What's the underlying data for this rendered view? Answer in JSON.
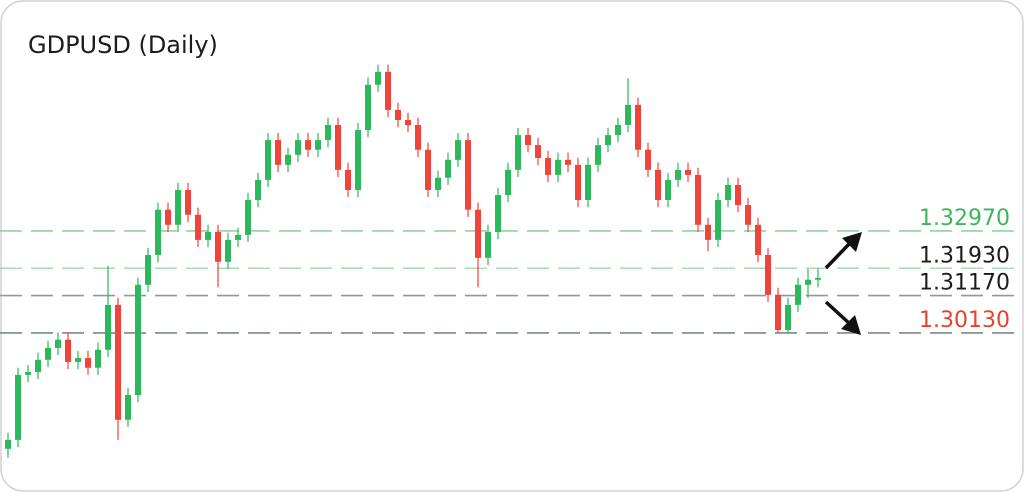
{
  "chart_data": {
    "type": "candlestick",
    "title": "GDPUSD (Daily)",
    "ylim": [
      1.2659,
      1.3773
    ],
    "up_color": "#2eb85c",
    "down_color": "#f0443a",
    "open": [
      1.269,
      1.2715,
      1.2896,
      1.2904,
      1.2938,
      1.2971,
      1.2994,
      1.2932,
      1.2943,
      1.2916,
      1.2966,
      1.3091,
      1.2771,
      1.284,
      1.3147,
      1.323,
      1.3356,
      1.3314,
      1.3411,
      1.3342,
      1.3272,
      1.3294,
      1.3211,
      1.3272,
      1.3286,
      1.3383,
      1.3439,
      1.355,
      1.3481,
      1.3509,
      1.355,
      1.3523,
      1.355,
      1.3592,
      1.3467,
      1.3411,
      1.3578,
      1.3704,
      1.374,
      1.3634,
      1.3606,
      1.3592,
      1.3523,
      1.3411,
      1.3445,
      1.3495,
      1.355,
      1.3356,
      1.3222,
      1.3294,
      1.3397,
      1.3467,
      1.3564,
      1.3536,
      1.35,
      1.3453,
      1.3495,
      1.3481,
      1.3383,
      1.3481,
      1.3536,
      1.3564,
      1.3592,
      1.3648,
      1.3523,
      1.3467,
      1.3383,
      1.3439,
      1.3467,
      1.3453,
      1.3314,
      1.3272,
      1.3383,
      1.3425,
      1.3369,
      1.3314,
      1.323,
      1.3119,
      1.3021,
      1.3091,
      1.3147,
      1.3161
    ],
    "high": [
      1.2735,
      1.2916,
      1.2924,
      1.2958,
      1.2991,
      1.3014,
      1.3014,
      1.2963,
      1.2963,
      1.2986,
      1.32,
      1.3111,
      1.286,
      1.3167,
      1.325,
      1.3376,
      1.3376,
      1.3431,
      1.3431,
      1.3362,
      1.3314,
      1.3314,
      1.3292,
      1.3306,
      1.3403,
      1.3459,
      1.357,
      1.357,
      1.3529,
      1.357,
      1.357,
      1.357,
      1.3612,
      1.3612,
      1.3487,
      1.3598,
      1.3724,
      1.376,
      1.376,
      1.3654,
      1.3626,
      1.3612,
      1.3543,
      1.3465,
      1.3515,
      1.357,
      1.357,
      1.3376,
      1.3314,
      1.3417,
      1.3487,
      1.3584,
      1.3584,
      1.3556,
      1.352,
      1.3515,
      1.3515,
      1.3501,
      1.3501,
      1.3556,
      1.3584,
      1.3612,
      1.3722,
      1.3668,
      1.3543,
      1.3487,
      1.3459,
      1.3487,
      1.3487,
      1.3473,
      1.3334,
      1.3403,
      1.3445,
      1.3445,
      1.3389,
      1.3334,
      1.325,
      1.3139,
      1.3111,
      1.3167,
      1.3191,
      1.3193
    ],
    "low": [
      1.2665,
      1.2695,
      1.2876,
      1.2884,
      1.2918,
      1.2951,
      1.2912,
      1.2912,
      1.2896,
      1.2896,
      1.2946,
      1.2715,
      1.2751,
      1.282,
      1.3127,
      1.321,
      1.3294,
      1.3294,
      1.3322,
      1.3252,
      1.3252,
      1.314,
      1.3191,
      1.3252,
      1.3266,
      1.3363,
      1.3419,
      1.3461,
      1.3461,
      1.3489,
      1.3503,
      1.3503,
      1.353,
      1.3447,
      1.3391,
      1.3391,
      1.3558,
      1.3684,
      1.3614,
      1.3586,
      1.3572,
      1.3503,
      1.3391,
      1.3391,
      1.3425,
      1.3475,
      1.3336,
      1.314,
      1.3202,
      1.3274,
      1.3377,
      1.3447,
      1.3516,
      1.348,
      1.3433,
      1.3433,
      1.3461,
      1.3363,
      1.3363,
      1.3461,
      1.3516,
      1.3544,
      1.3572,
      1.3503,
      1.3447,
      1.3363,
      1.3363,
      1.3419,
      1.3433,
      1.3294,
      1.324,
      1.3252,
      1.3363,
      1.3349,
      1.3294,
      1.321,
      1.3099,
      1.3013,
      1.3013,
      1.3071,
      1.311,
      1.314
    ],
    "close": [
      1.2715,
      1.2896,
      1.2904,
      1.2938,
      1.2971,
      1.2994,
      1.2932,
      1.2943,
      1.2916,
      1.2966,
      1.3091,
      1.2771,
      1.284,
      1.3147,
      1.323,
      1.3356,
      1.3314,
      1.3411,
      1.3342,
      1.3272,
      1.3294,
      1.3211,
      1.3272,
      1.3286,
      1.3383,
      1.3439,
      1.355,
      1.3481,
      1.3509,
      1.355,
      1.3523,
      1.355,
      1.3592,
      1.3467,
      1.3411,
      1.3578,
      1.3704,
      1.374,
      1.3634,
      1.3606,
      1.3592,
      1.3523,
      1.3411,
      1.3445,
      1.3495,
      1.355,
      1.3356,
      1.3222,
      1.3294,
      1.3397,
      1.3467,
      1.3564,
      1.3536,
      1.35,
      1.3453,
      1.3495,
      1.3481,
      1.3383,
      1.3481,
      1.3536,
      1.3564,
      1.3592,
      1.3648,
      1.3523,
      1.3467,
      1.3383,
      1.3439,
      1.3467,
      1.3453,
      1.3314,
      1.3272,
      1.3383,
      1.3425,
      1.3369,
      1.3314,
      1.323,
      1.3119,
      1.3021,
      1.3091,
      1.3147,
      1.3161,
      1.3166
    ],
    "levels": [
      {
        "value": 1.3297,
        "label": "1.32970",
        "color": "#3db55c",
        "line_color": "#93d3a0"
      },
      {
        "value": 1.3193,
        "label": "1.31930",
        "color": "#1c1c1c",
        "line_color": "#a8dbb2"
      },
      {
        "value": 1.3117,
        "label": "1.31170",
        "color": "#1c1c1c",
        "line_color": "#8f9a96"
      },
      {
        "value": 1.3013,
        "label": "1.30130",
        "color": "#e4432d",
        "line_color": "#7f8a86"
      }
    ]
  }
}
